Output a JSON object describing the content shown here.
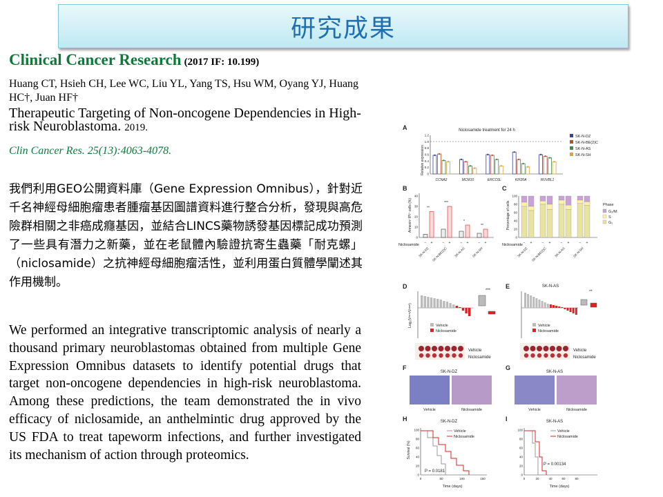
{
  "header": {
    "title": "研究成果"
  },
  "journal": {
    "name": "Clinical Cancer Research",
    "impact": "(2017 IF: 10.199)"
  },
  "authors": "Huang CT, Hsieh CH, Lee WC, Liu YL, Yang TS, Hsu WM, Oyang YJ, Huang HC†, Juan HF†",
  "paper": {
    "title": "Therapeutic Targeting of Non-oncogene Dependencies in High-risk  Neuroblastoma.",
    "year": "2019."
  },
  "citation": "Clin Cancer Res. 25(13):4063-4078.",
  "summary_zh": "我們利用GEO公開資料庫（Gene Expression Omnibus），針對近千名神經母細胞瘤患者腫瘤基因圖譜資料進行整合分析，發現與高危險群相關之非癌成癮基因，並結合LINCS藥物誘發基因標記成功預測了一些具有潛力之新藥，並在老鼠體內驗證抗寄生蟲藥「耐克螺」（niclosamide）之抗神經母細胞瘤活性，並利用蛋白質體學闡述其作用機制。",
  "summary_en": "We performed an integrative transcriptomic analysis of nearly a thousand primary neuroblastomas obtained from multiple Gene Expression Omnibus datasets to identify potential drugs that target non-oncogene dependencies in high-risk neuroblastoma. Among these predictions, the team demonstrated the in vivo efficacy of niclosamide, an anthelmintic drug approved by the US FDA to treat tapeworm infections, and further investigated its mechanism  of action through proteomics.",
  "figure": {
    "panels": [
      "A",
      "B",
      "C",
      "D",
      "E",
      "F",
      "G",
      "H",
      "I"
    ],
    "panel_a": {
      "title": "Niclosamide treatment for 24 h",
      "ylabel": "Relative expression",
      "yticks": [
        "0",
        "0.2",
        "0.4",
        "0.6",
        "0.8",
        "1.0",
        "1.2"
      ],
      "genes": [
        "CCNA2",
        "MCM10",
        "ERCC6L",
        "KIF20A",
        "RUVBL1"
      ],
      "legend": [
        "SK-N-DZ",
        "SK-N-BE(2)C",
        "SK-N-AS",
        "SK-N-SH"
      ],
      "colors": [
        "#3b3f9a",
        "#c14a2b",
        "#3f8a4f",
        "#e3a13a"
      ],
      "values": [
        [
          0.58,
          0.62,
          0.42,
          0.38
        ],
        [
          0.45,
          0.38,
          0.25,
          0.18
        ],
        [
          0.6,
          0.58,
          0.45,
          0.25
        ],
        [
          0.68,
          0.45,
          0.32,
          0.22
        ],
        [
          0.6,
          0.55,
          0.5,
          0.38
        ]
      ]
    },
    "panel_b": {
      "ylabel": "Annexin⁺/PI⁺ cells (%)",
      "yticks": [
        "0",
        "10",
        "20",
        "30",
        "40"
      ],
      "xlabel": "Niclosamide",
      "signs": [
        "−",
        "+"
      ],
      "cells": [
        "SK-N-DZ",
        "SK-N-BE(2)C",
        "SK-N-AS",
        "SK-N-SH"
      ],
      "sig": [
        "**",
        "***",
        "*",
        "**"
      ]
    },
    "panel_c": {
      "ylabel": "Percentage of cells",
      "yticks": [
        "0",
        "20",
        "40",
        "60",
        "80",
        "100"
      ],
      "legend_title": "Phase",
      "legend": [
        "G₂/M",
        "S",
        "G₁"
      ],
      "xlabel": "Niclosamide",
      "cells": [
        "SK-N-DZ",
        "SK-N-BE(2)C",
        "SK-N-AS",
        "SK-N-SH"
      ]
    },
    "panel_d": {
      "ylabel": "Log₂(Vᵗᵉʳᵐ/Vˢᵗᵃʳᵗ)",
      "sig": "***",
      "legend": [
        "Vehicle",
        "Niclosamide"
      ]
    },
    "panel_e": {
      "title": "SK-N-AS",
      "sig": "**",
      "legend": [
        "Vehicle",
        "Niclosamide"
      ]
    },
    "tumor_labels": [
      "Vehicle",
      "Niclosamide"
    ],
    "panel_f": {
      "title": "SK-N-DZ",
      "labels": [
        "Vehicle",
        "Niclosamide"
      ]
    },
    "panel_g": {
      "title": "SK-N-AS",
      "labels": [
        "Vehicle",
        "Niclosamide"
      ]
    },
    "panel_h": {
      "title": "SK-N-DZ",
      "ylabel": "Survival (%)",
      "xlabel": "Time (days)",
      "yticks": [
        "0",
        "20",
        "40",
        "60",
        "80",
        "100"
      ],
      "xticks": [
        "0",
        "50",
        "100",
        "150"
      ],
      "legend": [
        "Vehicle",
        "Niclosamide"
      ],
      "pvalue": "P = 0.0181"
    },
    "panel_i": {
      "title": "SK-N-AS",
      "xlabel": "Time (days)",
      "yticks": [
        "0",
        "20",
        "40",
        "60",
        "80",
        "100"
      ],
      "xticks": [
        "0",
        "20",
        "40",
        "60",
        "80"
      ],
      "legend": [
        "Vehicle",
        "Niclosamide"
      ],
      "pvalue": "P = 0.00134"
    }
  }
}
